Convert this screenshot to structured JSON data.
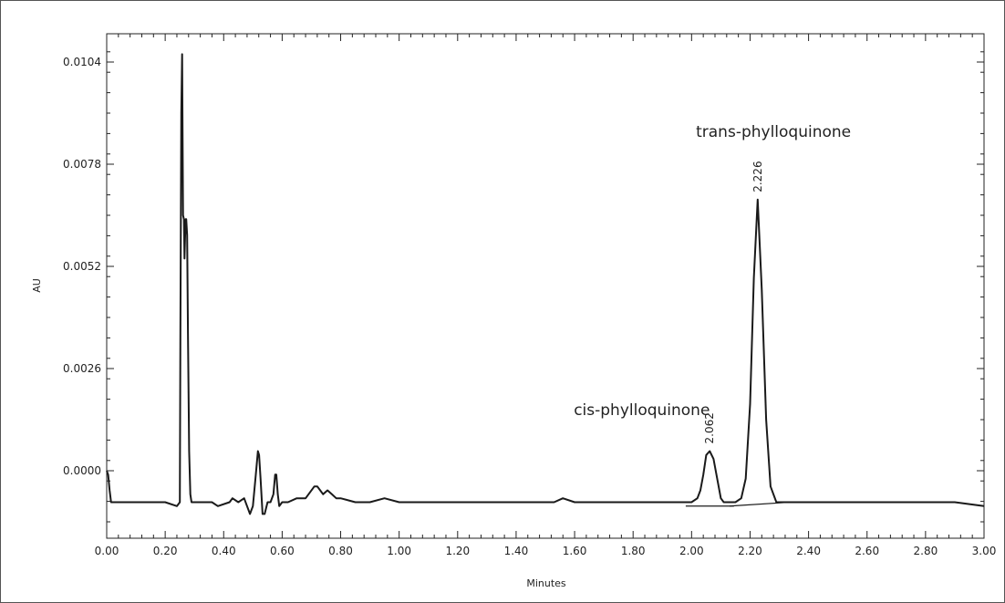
{
  "chart_data": {
    "type": "line",
    "xlabel": "Minutes",
    "ylabel": "AU",
    "xlim": [
      0.0,
      3.0
    ],
    "ylim": [
      -0.0016,
      0.0111
    ],
    "x_ticks": [
      "0.00",
      "0.20",
      "0.40",
      "0.60",
      "0.80",
      "1.00",
      "1.20",
      "1.40",
      "1.60",
      "1.80",
      "2.00",
      "2.20",
      "2.40",
      "2.60",
      "2.80",
      "3.00"
    ],
    "y_ticks": [
      "0.0000",
      "0.0026",
      "0.0052",
      "0.0078",
      "0.0104"
    ],
    "grid": false,
    "peaks": [
      {
        "rt": "2.062",
        "x": 2.062,
        "y": 0.0005,
        "label": "cis-phylloquinone"
      },
      {
        "rt": "2.226",
        "x": 2.226,
        "y": 0.0069,
        "label": "trans-phylloquinone"
      }
    ],
    "series": [
      {
        "x": [
          0.0,
          0.005,
          0.01,
          0.015,
          0.02,
          0.03,
          0.05,
          0.1,
          0.15,
          0.2,
          0.24,
          0.25,
          0.252,
          0.255,
          0.258,
          0.261,
          0.264,
          0.266,
          0.268,
          0.27,
          0.272,
          0.275,
          0.278,
          0.282,
          0.286,
          0.29,
          0.3,
          0.33,
          0.35,
          0.36,
          0.38,
          0.42,
          0.43,
          0.45,
          0.47,
          0.48,
          0.49,
          0.5,
          0.51,
          0.517,
          0.521,
          0.526,
          0.533,
          0.54,
          0.55,
          0.56,
          0.57,
          0.576,
          0.58,
          0.585,
          0.59,
          0.6,
          0.62,
          0.65,
          0.68,
          0.71,
          0.72,
          0.73,
          0.74,
          0.755,
          0.77,
          0.785,
          0.8,
          0.85,
          0.9,
          0.95,
          1.0,
          1.1,
          1.2,
          1.3,
          1.4,
          1.5,
          1.53,
          1.56,
          1.6,
          1.7,
          1.8,
          1.9,
          2.0,
          2.02,
          2.03,
          2.04,
          2.05,
          2.062,
          2.075,
          2.09,
          2.1,
          2.11,
          2.13,
          2.15,
          2.17,
          2.185,
          2.2,
          2.213,
          2.226,
          2.24,
          2.255,
          2.27,
          2.29,
          2.32,
          2.36,
          2.4,
          2.5,
          2.6,
          2.7,
          2.8,
          2.9,
          3.0
        ],
        "y": [
          0.0,
          -0.0001,
          -0.0005,
          -0.0008,
          -0.0008,
          -0.0008,
          -0.0008,
          -0.0008,
          -0.0008,
          -0.0008,
          -0.0009,
          -0.0008,
          0.0035,
          0.0091,
          0.0106,
          0.0065,
          0.0064,
          0.0054,
          0.0059,
          0.0064,
          0.0064,
          0.006,
          0.0035,
          0.0005,
          -0.0006,
          -0.0008,
          -0.0008,
          -0.0008,
          -0.0008,
          -0.0008,
          -0.0009,
          -0.0008,
          -0.0007,
          -0.0008,
          -0.0007,
          -0.0009,
          -0.0011,
          -0.0009,
          -0.0001,
          0.0005,
          0.0004,
          -0.0002,
          -0.0011,
          -0.0011,
          -0.0008,
          -0.0008,
          -0.0006,
          -0.0001,
          -0.0001,
          -0.0006,
          -0.0009,
          -0.0008,
          -0.0008,
          -0.0007,
          -0.0007,
          -0.0004,
          -0.0004,
          -0.0005,
          -0.0006,
          -0.0005,
          -0.0006,
          -0.0007,
          -0.0007,
          -0.0008,
          -0.0008,
          -0.0007,
          -0.0008,
          -0.0008,
          -0.0008,
          -0.0008,
          -0.0008,
          -0.0008,
          -0.0008,
          -0.0007,
          -0.0008,
          -0.0008,
          -0.0008,
          -0.0008,
          -0.0008,
          -0.0007,
          -0.0005,
          -0.0001,
          0.0004,
          0.0005,
          0.0003,
          -0.0003,
          -0.0007,
          -0.0008,
          -0.0008,
          -0.0008,
          -0.0007,
          -0.0002,
          0.0017,
          0.0049,
          0.0069,
          0.0046,
          0.0013,
          -0.0004,
          -0.0008,
          -0.0008,
          -0.0008,
          -0.0008,
          -0.0008,
          -0.0008,
          -0.0008,
          -0.0008,
          -0.0008,
          -0.0009
        ]
      }
    ],
    "integration_baselines": [
      {
        "x": [
          1.98,
          2.145
        ],
        "y": [
          -0.0009,
          -0.0009
        ]
      },
      {
        "x": [
          2.13,
          2.34
        ],
        "y": [
          -0.0009,
          -0.0008
        ]
      }
    ]
  }
}
